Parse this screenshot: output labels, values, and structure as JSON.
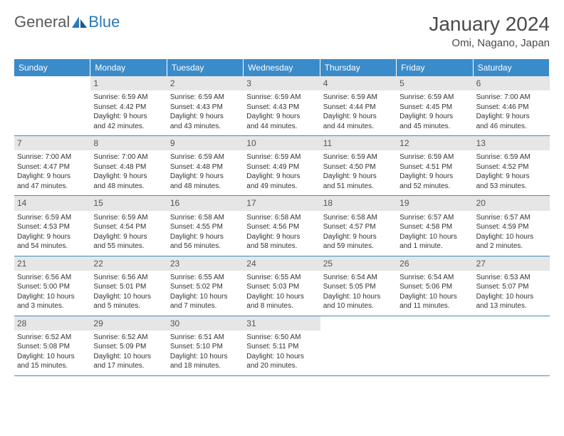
{
  "brand": {
    "part1": "General",
    "part2": "Blue"
  },
  "title": "January 2024",
  "location": "Omi, Nagano, Japan",
  "styling": {
    "header_bg": "#3a8bc9",
    "header_text": "#ffffff",
    "daynum_bg": "#e6e6e6",
    "daynum_text": "#555555",
    "border_color": "#3a8bc9",
    "page_bg": "#ffffff",
    "body_text": "#333333",
    "title_fontsize": 28,
    "location_fontsize": 15,
    "dayhead_fontsize": 12,
    "cell_fontsize": 10,
    "columns": 7,
    "rows": 5
  },
  "weekdays": [
    "Sunday",
    "Monday",
    "Tuesday",
    "Wednesday",
    "Thursday",
    "Friday",
    "Saturday"
  ],
  "days": [
    {
      "n": "",
      "sunrise": "",
      "sunset": "",
      "day1": "",
      "day2": ""
    },
    {
      "n": "1",
      "sunrise": "Sunrise: 6:59 AM",
      "sunset": "Sunset: 4:42 PM",
      "day1": "Daylight: 9 hours",
      "day2": "and 42 minutes."
    },
    {
      "n": "2",
      "sunrise": "Sunrise: 6:59 AM",
      "sunset": "Sunset: 4:43 PM",
      "day1": "Daylight: 9 hours",
      "day2": "and 43 minutes."
    },
    {
      "n": "3",
      "sunrise": "Sunrise: 6:59 AM",
      "sunset": "Sunset: 4:43 PM",
      "day1": "Daylight: 9 hours",
      "day2": "and 44 minutes."
    },
    {
      "n": "4",
      "sunrise": "Sunrise: 6:59 AM",
      "sunset": "Sunset: 4:44 PM",
      "day1": "Daylight: 9 hours",
      "day2": "and 44 minutes."
    },
    {
      "n": "5",
      "sunrise": "Sunrise: 6:59 AM",
      "sunset": "Sunset: 4:45 PM",
      "day1": "Daylight: 9 hours",
      "day2": "and 45 minutes."
    },
    {
      "n": "6",
      "sunrise": "Sunrise: 7:00 AM",
      "sunset": "Sunset: 4:46 PM",
      "day1": "Daylight: 9 hours",
      "day2": "and 46 minutes."
    },
    {
      "n": "7",
      "sunrise": "Sunrise: 7:00 AM",
      "sunset": "Sunset: 4:47 PM",
      "day1": "Daylight: 9 hours",
      "day2": "and 47 minutes."
    },
    {
      "n": "8",
      "sunrise": "Sunrise: 7:00 AM",
      "sunset": "Sunset: 4:48 PM",
      "day1": "Daylight: 9 hours",
      "day2": "and 48 minutes."
    },
    {
      "n": "9",
      "sunrise": "Sunrise: 6:59 AM",
      "sunset": "Sunset: 4:48 PM",
      "day1": "Daylight: 9 hours",
      "day2": "and 48 minutes."
    },
    {
      "n": "10",
      "sunrise": "Sunrise: 6:59 AM",
      "sunset": "Sunset: 4:49 PM",
      "day1": "Daylight: 9 hours",
      "day2": "and 49 minutes."
    },
    {
      "n": "11",
      "sunrise": "Sunrise: 6:59 AM",
      "sunset": "Sunset: 4:50 PM",
      "day1": "Daylight: 9 hours",
      "day2": "and 51 minutes."
    },
    {
      "n": "12",
      "sunrise": "Sunrise: 6:59 AM",
      "sunset": "Sunset: 4:51 PM",
      "day1": "Daylight: 9 hours",
      "day2": "and 52 minutes."
    },
    {
      "n": "13",
      "sunrise": "Sunrise: 6:59 AM",
      "sunset": "Sunset: 4:52 PM",
      "day1": "Daylight: 9 hours",
      "day2": "and 53 minutes."
    },
    {
      "n": "14",
      "sunrise": "Sunrise: 6:59 AM",
      "sunset": "Sunset: 4:53 PM",
      "day1": "Daylight: 9 hours",
      "day2": "and 54 minutes."
    },
    {
      "n": "15",
      "sunrise": "Sunrise: 6:59 AM",
      "sunset": "Sunset: 4:54 PM",
      "day1": "Daylight: 9 hours",
      "day2": "and 55 minutes."
    },
    {
      "n": "16",
      "sunrise": "Sunrise: 6:58 AM",
      "sunset": "Sunset: 4:55 PM",
      "day1": "Daylight: 9 hours",
      "day2": "and 56 minutes."
    },
    {
      "n": "17",
      "sunrise": "Sunrise: 6:58 AM",
      "sunset": "Sunset: 4:56 PM",
      "day1": "Daylight: 9 hours",
      "day2": "and 58 minutes."
    },
    {
      "n": "18",
      "sunrise": "Sunrise: 6:58 AM",
      "sunset": "Sunset: 4:57 PM",
      "day1": "Daylight: 9 hours",
      "day2": "and 59 minutes."
    },
    {
      "n": "19",
      "sunrise": "Sunrise: 6:57 AM",
      "sunset": "Sunset: 4:58 PM",
      "day1": "Daylight: 10 hours",
      "day2": "and 1 minute."
    },
    {
      "n": "20",
      "sunrise": "Sunrise: 6:57 AM",
      "sunset": "Sunset: 4:59 PM",
      "day1": "Daylight: 10 hours",
      "day2": "and 2 minutes."
    },
    {
      "n": "21",
      "sunrise": "Sunrise: 6:56 AM",
      "sunset": "Sunset: 5:00 PM",
      "day1": "Daylight: 10 hours",
      "day2": "and 3 minutes."
    },
    {
      "n": "22",
      "sunrise": "Sunrise: 6:56 AM",
      "sunset": "Sunset: 5:01 PM",
      "day1": "Daylight: 10 hours",
      "day2": "and 5 minutes."
    },
    {
      "n": "23",
      "sunrise": "Sunrise: 6:55 AM",
      "sunset": "Sunset: 5:02 PM",
      "day1": "Daylight: 10 hours",
      "day2": "and 7 minutes."
    },
    {
      "n": "24",
      "sunrise": "Sunrise: 6:55 AM",
      "sunset": "Sunset: 5:03 PM",
      "day1": "Daylight: 10 hours",
      "day2": "and 8 minutes."
    },
    {
      "n": "25",
      "sunrise": "Sunrise: 6:54 AM",
      "sunset": "Sunset: 5:05 PM",
      "day1": "Daylight: 10 hours",
      "day2": "and 10 minutes."
    },
    {
      "n": "26",
      "sunrise": "Sunrise: 6:54 AM",
      "sunset": "Sunset: 5:06 PM",
      "day1": "Daylight: 10 hours",
      "day2": "and 11 minutes."
    },
    {
      "n": "27",
      "sunrise": "Sunrise: 6:53 AM",
      "sunset": "Sunset: 5:07 PM",
      "day1": "Daylight: 10 hours",
      "day2": "and 13 minutes."
    },
    {
      "n": "28",
      "sunrise": "Sunrise: 6:52 AM",
      "sunset": "Sunset: 5:08 PM",
      "day1": "Daylight: 10 hours",
      "day2": "and 15 minutes."
    },
    {
      "n": "29",
      "sunrise": "Sunrise: 6:52 AM",
      "sunset": "Sunset: 5:09 PM",
      "day1": "Daylight: 10 hours",
      "day2": "and 17 minutes."
    },
    {
      "n": "30",
      "sunrise": "Sunrise: 6:51 AM",
      "sunset": "Sunset: 5:10 PM",
      "day1": "Daylight: 10 hours",
      "day2": "and 18 minutes."
    },
    {
      "n": "31",
      "sunrise": "Sunrise: 6:50 AM",
      "sunset": "Sunset: 5:11 PM",
      "day1": "Daylight: 10 hours",
      "day2": "and 20 minutes."
    },
    {
      "n": "",
      "sunrise": "",
      "sunset": "",
      "day1": "",
      "day2": ""
    },
    {
      "n": "",
      "sunrise": "",
      "sunset": "",
      "day1": "",
      "day2": ""
    },
    {
      "n": "",
      "sunrise": "",
      "sunset": "",
      "day1": "",
      "day2": ""
    }
  ]
}
